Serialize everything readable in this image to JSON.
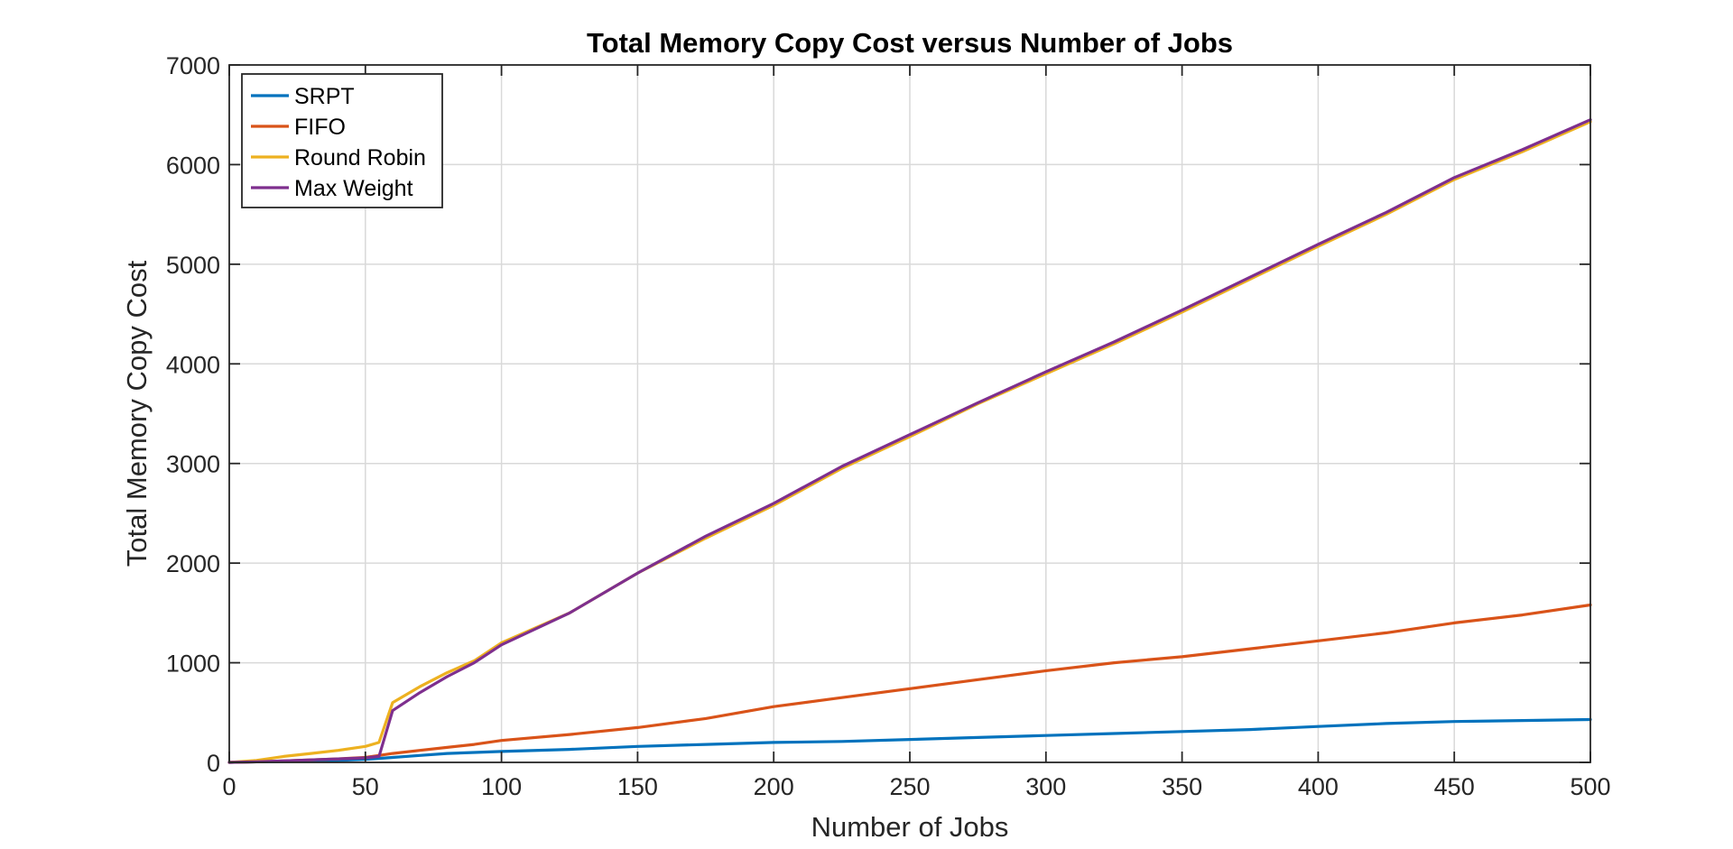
{
  "chart_data": {
    "type": "line",
    "title": "Total Memory Copy Cost versus Number of Jobs",
    "xlabel": "Number of Jobs",
    "ylabel": "Total Memory Copy Cost",
    "xlim": [
      0,
      500
    ],
    "ylim": [
      0,
      7000
    ],
    "x_ticks": [
      0,
      50,
      100,
      150,
      200,
      250,
      300,
      350,
      400,
      450,
      500
    ],
    "y_ticks": [
      0,
      1000,
      2000,
      3000,
      4000,
      5000,
      6000,
      7000
    ],
    "grid": true,
    "legend_position": "top-left",
    "x": [
      0,
      10,
      20,
      30,
      40,
      50,
      55,
      60,
      70,
      80,
      90,
      100,
      125,
      150,
      175,
      200,
      225,
      250,
      275,
      300,
      325,
      350,
      375,
      400,
      425,
      450,
      475,
      500
    ],
    "series": [
      {
        "name": "SRPT",
        "color": "#0072bd",
        "values": [
          0,
          5,
          10,
          15,
          20,
          30,
          40,
          50,
          70,
          90,
          100,
          110,
          130,
          160,
          180,
          200,
          210,
          230,
          250,
          270,
          290,
          310,
          330,
          360,
          390,
          410,
          420,
          430
        ]
      },
      {
        "name": "FIFO",
        "color": "#d95319",
        "values": [
          0,
          5,
          15,
          25,
          35,
          50,
          70,
          90,
          120,
          150,
          180,
          220,
          280,
          350,
          440,
          560,
          650,
          740,
          830,
          920,
          1000,
          1060,
          1140,
          1220,
          1300,
          1400,
          1480,
          1580
        ]
      },
      {
        "name": "Round Robin",
        "color": "#edb120",
        "values": [
          0,
          20,
          60,
          90,
          120,
          160,
          200,
          600,
          760,
          900,
          1020,
          1200,
          1500,
          1900,
          2250,
          2580,
          2950,
          3270,
          3600,
          3900,
          4200,
          4520,
          4850,
          5180,
          5500,
          5850,
          6130,
          6430
        ]
      },
      {
        "name": "Max Weight",
        "color": "#7e2f8e",
        "values": [
          0,
          5,
          15,
          25,
          35,
          45,
          60,
          520,
          700,
          860,
          1000,
          1180,
          1500,
          1900,
          2270,
          2600,
          2970,
          3290,
          3610,
          3920,
          4220,
          4540,
          4870,
          5200,
          5520,
          5870,
          6150,
          6450
        ]
      }
    ]
  }
}
